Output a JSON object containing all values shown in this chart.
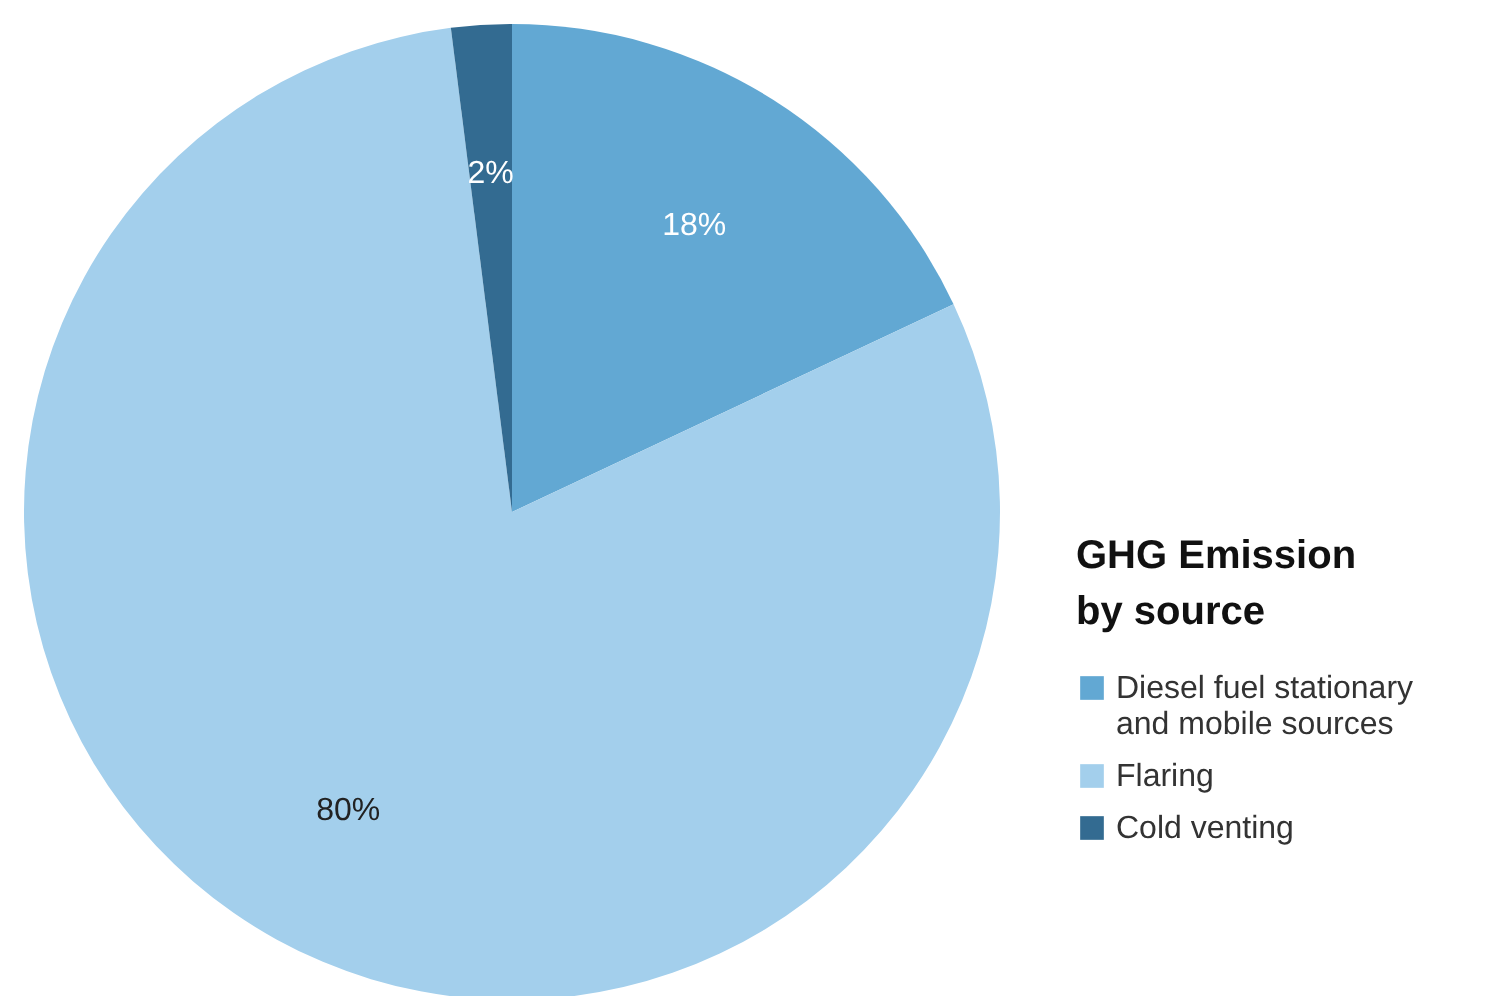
{
  "chart_data": {
    "type": "pie",
    "legend_title": "GHG Emission by source",
    "categories": [
      "Diesel fuel stationary and mobile sources",
      "Flaring",
      "Cold venting"
    ],
    "values": [
      18,
      80,
      2
    ],
    "colors": [
      "#62a8d3",
      "#a3cfec",
      "#336b91"
    ],
    "value_labels": [
      "18%",
      "80%",
      "2%"
    ],
    "legend": "right"
  }
}
